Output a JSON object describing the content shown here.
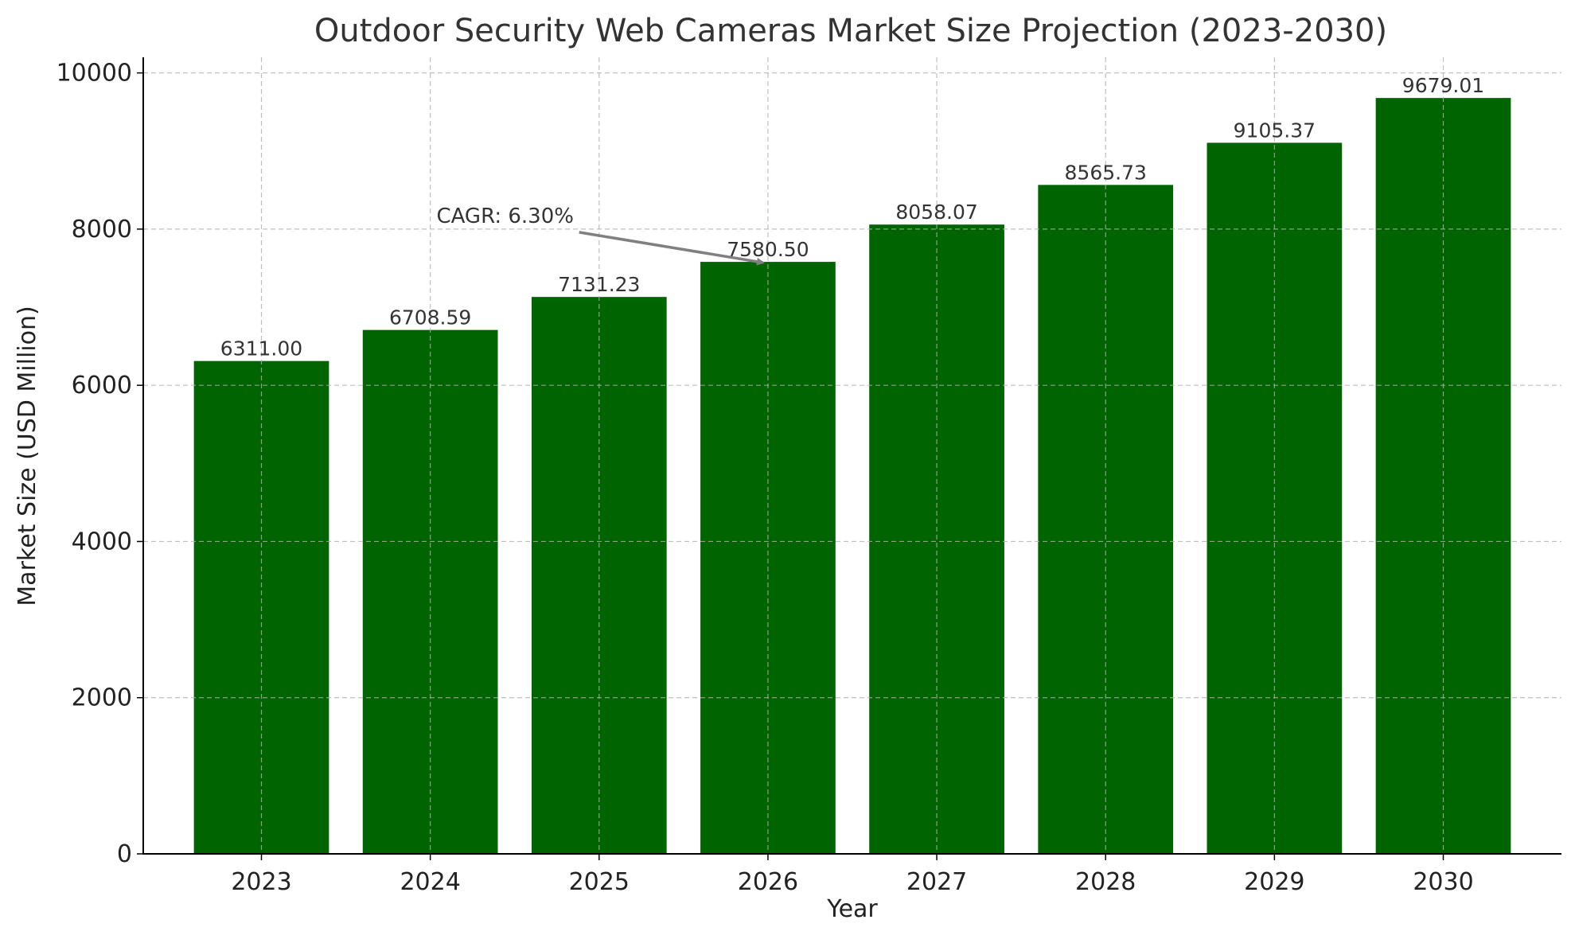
{
  "chart_data": {
    "type": "bar",
    "title": "Outdoor Security Web Cameras Market Size Projection (2023-2030)",
    "xlabel": "Year",
    "ylabel": "Market Size (USD Million)",
    "categories": [
      "2023",
      "2024",
      "2025",
      "2026",
      "2027",
      "2028",
      "2029",
      "2030"
    ],
    "values": [
      6311.0,
      6708.59,
      7131.23,
      7580.5,
      8058.07,
      8565.73,
      9105.37,
      9679.01
    ],
    "value_labels": [
      "6311.00",
      "6708.59",
      "7131.23",
      "7580.50",
      "8058.07",
      "8565.73",
      "9105.37",
      "9679.01"
    ],
    "ylim": [
      0,
      10200
    ],
    "yticks": [
      0,
      2000,
      4000,
      6000,
      8000,
      10000
    ],
    "grid": true,
    "bar_color": "#006400",
    "annotation": {
      "text": "CAGR: 6.30%",
      "target_category": "2026",
      "target_value": 7580.5,
      "text_position": {
        "category_index": 1.5,
        "value": 8000
      }
    }
  }
}
